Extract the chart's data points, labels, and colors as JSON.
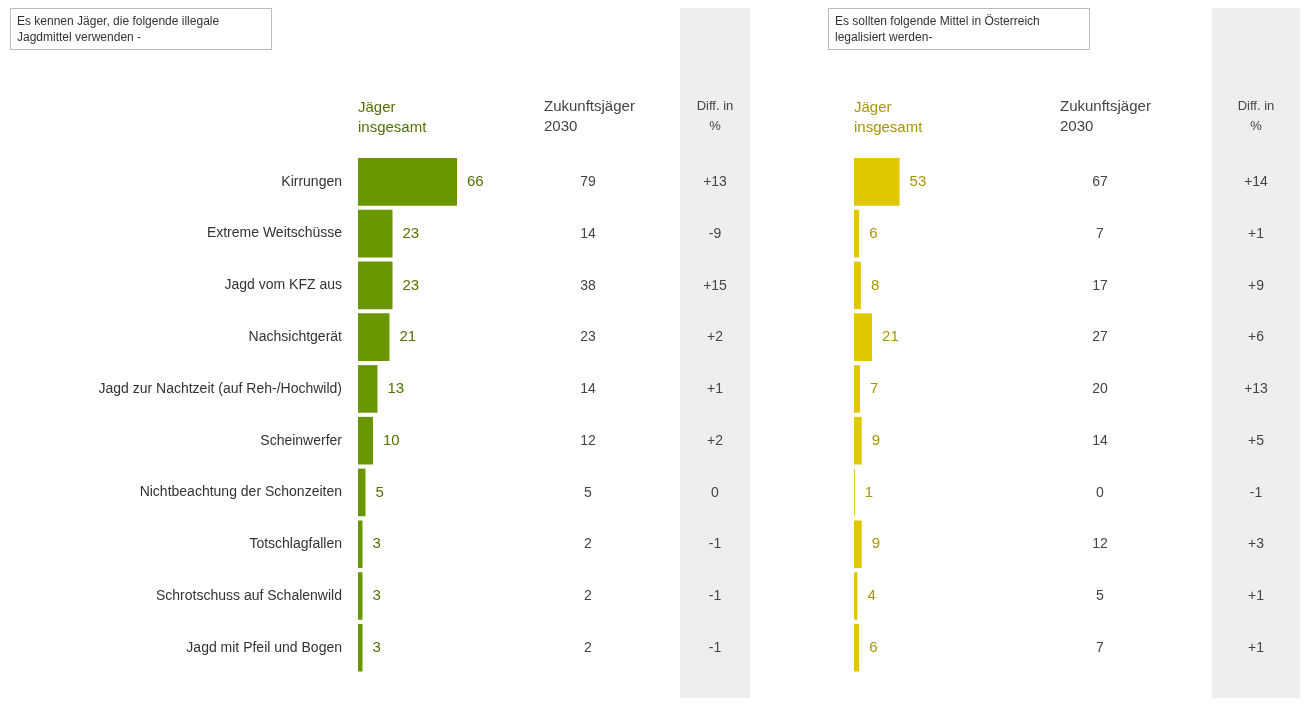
{
  "chart_data": [
    {
      "type": "bar",
      "orientation": "horizontal",
      "title": "Es kennen Jäger, die folgende illegale Jagdmittel verwenden -",
      "categories": [
        "Kirrungen",
        "Extreme Weitschüsse",
        "Jagd vom KFZ aus",
        "Nachsichtgerät",
        "Jagd zur Nachtzeit (auf Reh-/Hochwild)",
        "Scheinwerfer",
        "Nichtbeachtung der Schonzeiten",
        "Totschlagfallen",
        "Schrotschuss auf Schalenwild",
        "Jagd mit Pfeil und Bogen"
      ],
      "data_labels": true,
      "grid": false,
      "legend": false,
      "series": [
        {
          "name": "Jäger insgesamt",
          "color": "#6a9600",
          "values": [
            66,
            23,
            23,
            21,
            13,
            10,
            5,
            3,
            3,
            3
          ]
        }
      ]
    },
    {
      "type": "other",
      "title": "Zukunftsjäger 2030",
      "annotations": [
        "79",
        "14",
        "38",
        "23",
        "14",
        "12",
        "5",
        "2",
        "2",
        "2"
      ]
    },
    {
      "type": "other",
      "title": "Diff. in %",
      "annotations": [
        "+13",
        "-9",
        "+15",
        "+2",
        "+1",
        "+2",
        "0",
        "-1",
        "-1",
        "-1"
      ]
    },
    {
      "type": "bar",
      "orientation": "horizontal",
      "title": "Es sollten folgende Mittel in Österreich legalisiert werden-",
      "categories": [
        null,
        null,
        null,
        null,
        null,
        null,
        null,
        null,
        null,
        null
      ],
      "data_labels": true,
      "grid": false,
      "legend": false,
      "series": [
        {
          "name": "Jäger insgesamt",
          "color": "#e0c800",
          "values": [
            53,
            6,
            8,
            21,
            7,
            9,
            1,
            9,
            4,
            6
          ]
        }
      ]
    },
    {
      "type": "other",
      "title": "Zukunftsjäger 2030",
      "annotations": [
        "67",
        "7",
        "17",
        "27",
        "20",
        "14",
        "0",
        "12",
        "5",
        "7"
      ]
    },
    {
      "type": "other",
      "title": "Diff. in %",
      "annotations": [
        "+14",
        "+1",
        "+9",
        "+6",
        "+13",
        "+5",
        "-1",
        "+3",
        "+1",
        "+1"
      ]
    }
  ]
}
